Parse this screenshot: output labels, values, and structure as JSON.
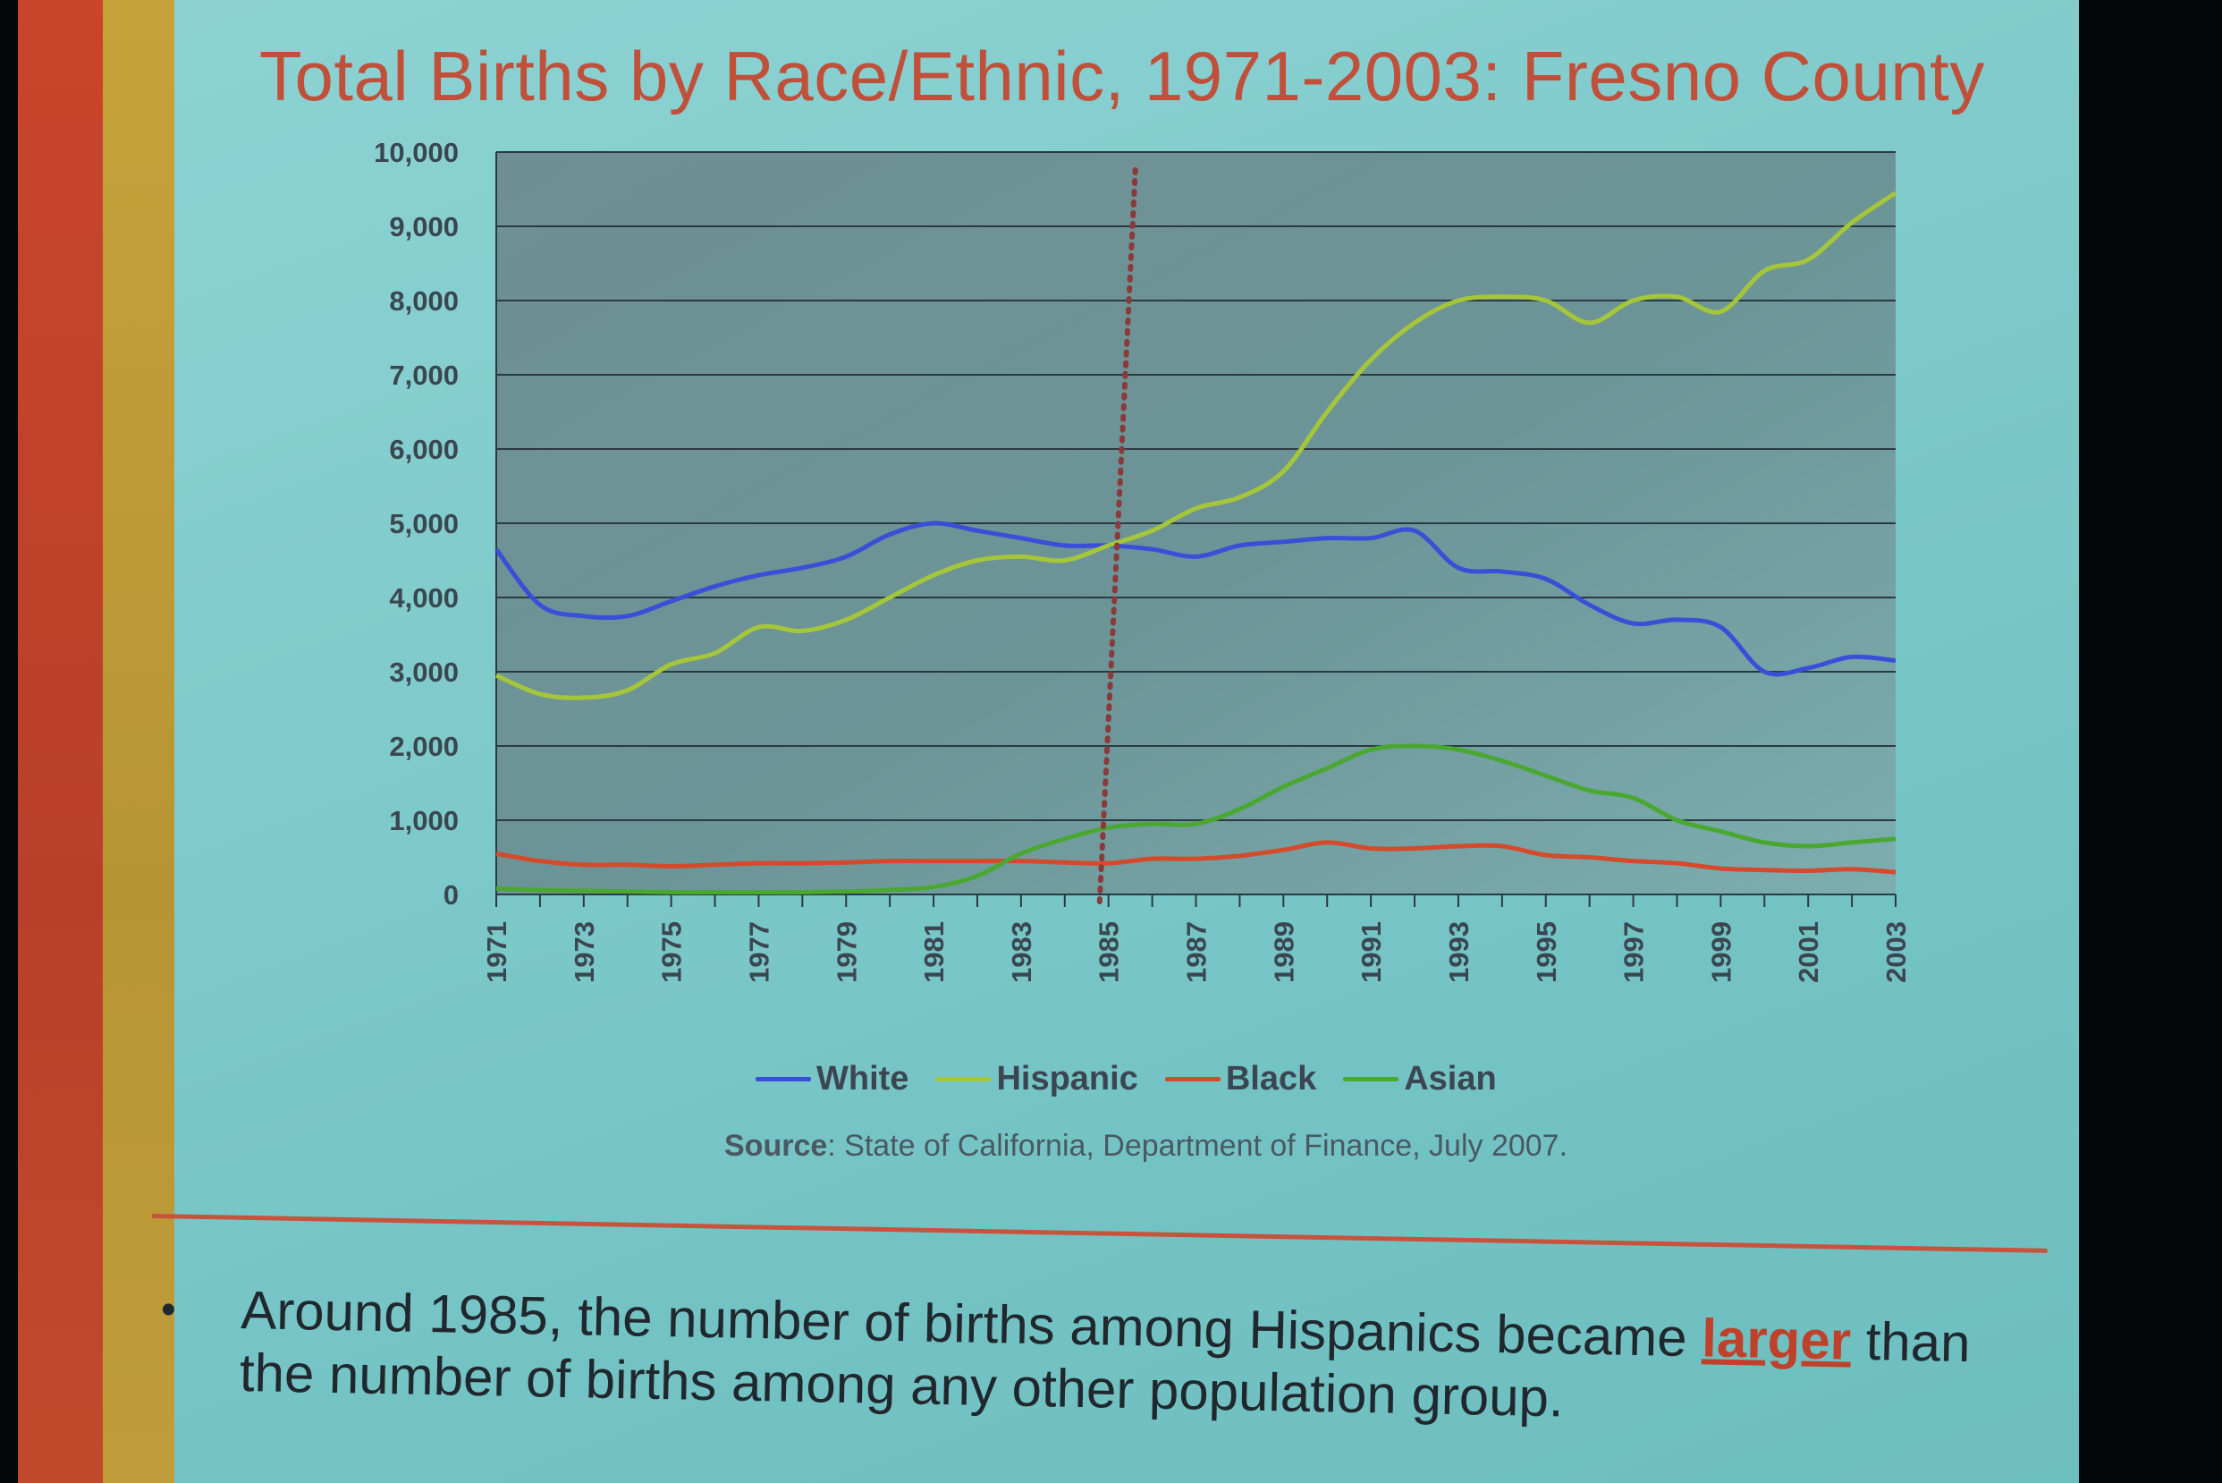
{
  "slide": {
    "title": "Total Births by Race/Ethnic, 1971-2003: Fresno County",
    "source_label": "Source",
    "source_text": ": State of California, Department of Finance, July 2007.",
    "bullet_symbol": "•",
    "bullet_text_before": "Around 1985, the number of births among Hispanics became ",
    "bullet_emphasis": "larger",
    "bullet_text_after": " than the number of births among any other population group."
  },
  "chart_data": {
    "type": "line",
    "title": "Total Births by Race/Ethnic, 1971-2003: Fresno County",
    "xlabel": "",
    "ylabel": "",
    "ylim": [
      0,
      10000
    ],
    "yticks": [
      0,
      1000,
      2000,
      3000,
      4000,
      5000,
      6000,
      7000,
      8000,
      9000,
      10000
    ],
    "ytick_labels": [
      "0",
      "1,000",
      "2,000",
      "3,000",
      "4,000",
      "5,000",
      "6,000",
      "7,000",
      "8,000",
      "9,000",
      "10,000"
    ],
    "x": [
      1971,
      1972,
      1973,
      1974,
      1975,
      1976,
      1977,
      1978,
      1979,
      1980,
      1981,
      1982,
      1983,
      1984,
      1985,
      1986,
      1987,
      1988,
      1989,
      1990,
      1991,
      1992,
      1993,
      1994,
      1995,
      1996,
      1997,
      1998,
      1999,
      2000,
      2001,
      2002,
      2003
    ],
    "xtick_labels": [
      "1971",
      "1973",
      "1975",
      "1977",
      "1979",
      "1981",
      "1983",
      "1985",
      "1987",
      "1989",
      "1991",
      "1993",
      "1995",
      "1997",
      "1999",
      "2001",
      "2003"
    ],
    "reference_line": {
      "x": 1985,
      "style": "dotted",
      "color": "#8a3a3a"
    },
    "grid": true,
    "legend_position": "bottom",
    "series": [
      {
        "name": "White",
        "color": "#3a4fd8",
        "values": [
          4650,
          3900,
          3750,
          3750,
          3950,
          4150,
          4300,
          4400,
          4550,
          4850,
          5000,
          4900,
          4800,
          4700,
          4700,
          4650,
          4550,
          4700,
          4750,
          4800,
          4800,
          4900,
          4400,
          4350,
          4250,
          3900,
          3650,
          3700,
          3600,
          3000,
          3050,
          3200,
          3150
        ]
      },
      {
        "name": "Hispanic",
        "color": "#a6c63a",
        "values": [
          2950,
          2700,
          2650,
          2750,
          3100,
          3250,
          3600,
          3550,
          3700,
          4000,
          4300,
          4500,
          4550,
          4500,
          4700,
          4900,
          5200,
          5350,
          5700,
          6500,
          7200,
          7700,
          8000,
          8050,
          8000,
          7700,
          8000,
          8050,
          7850,
          8400,
          8550,
          9050,
          9450
        ]
      },
      {
        "name": "Black",
        "color": "#d44a2a",
        "values": [
          550,
          450,
          400,
          400,
          380,
          400,
          420,
          420,
          430,
          450,
          450,
          450,
          450,
          430,
          420,
          480,
          480,
          520,
          600,
          700,
          620,
          620,
          650,
          650,
          530,
          500,
          450,
          420,
          350,
          330,
          320,
          340,
          300
        ]
      },
      {
        "name": "Asian",
        "color": "#4aa832",
        "values": [
          80,
          60,
          50,
          40,
          30,
          30,
          30,
          30,
          40,
          60,
          100,
          250,
          550,
          750,
          900,
          950,
          950,
          1150,
          1450,
          1700,
          1950,
          2000,
          1950,
          1800,
          1600,
          1400,
          1300,
          1000,
          850,
          700,
          650,
          700,
          750
        ]
      }
    ]
  }
}
